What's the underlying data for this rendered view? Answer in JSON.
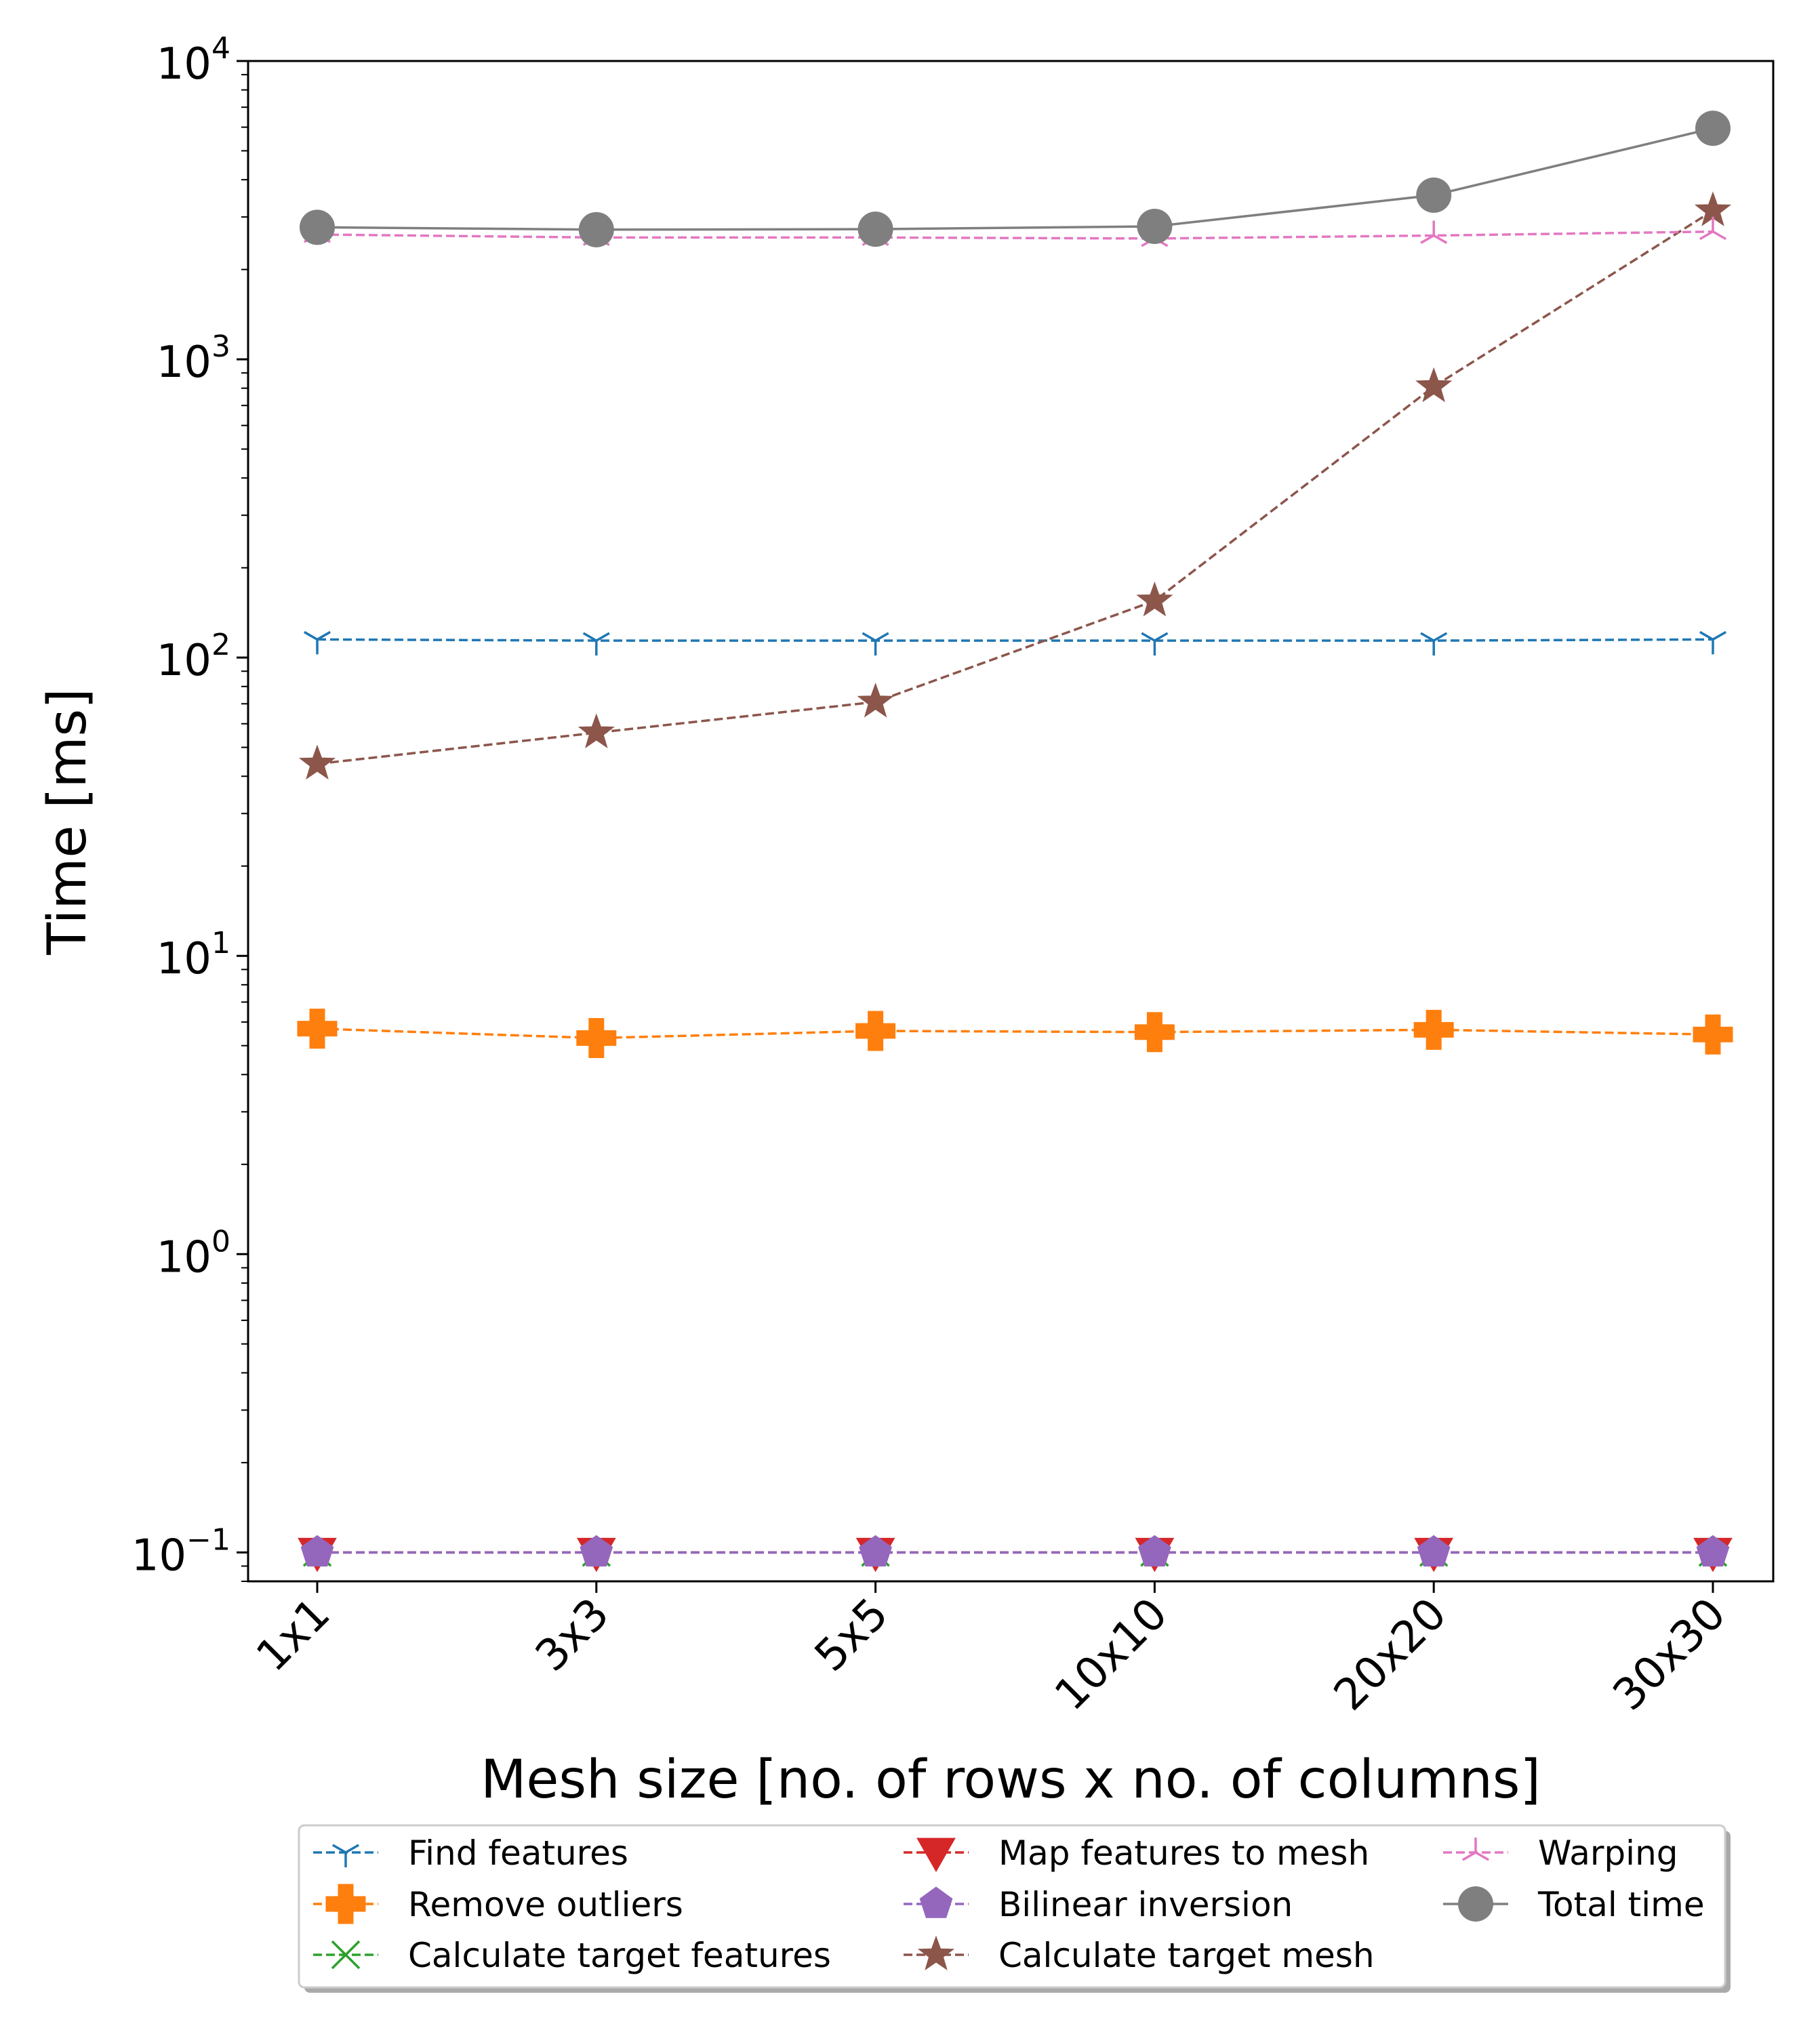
{
  "chart_data": {
    "type": "line",
    "yscale": "log",
    "ylim": [
      0.08,
      10000
    ],
    "xlabel": "Mesh size [no. of rows x no. of columns]",
    "ylabel": "Time [ms]",
    "categories": [
      "1x1",
      "3x3",
      "5x5",
      "10x10",
      "20x20",
      "30x30"
    ],
    "yticks": [
      {
        "value": 0.1,
        "base": "10",
        "exp": "−1"
      },
      {
        "value": 1,
        "base": "10",
        "exp": "0"
      },
      {
        "value": 10,
        "base": "10",
        "exp": "1"
      },
      {
        "value": 100,
        "base": "10",
        "exp": "2"
      },
      {
        "value": 1000,
        "base": "10",
        "exp": "3"
      },
      {
        "value": 10000,
        "base": "10",
        "exp": "4"
      }
    ],
    "legend_position": "bottom-center",
    "series": [
      {
        "name": "Find features",
        "color": "#1f77b4",
        "dash": true,
        "marker": "tri_down",
        "values": [
          115,
          114,
          114,
          114,
          114,
          115
        ]
      },
      {
        "name": "Remove outliers",
        "color": "#ff7f0e",
        "dash": true,
        "marker": "plus_filled",
        "values": [
          5.7,
          5.3,
          5.6,
          5.55,
          5.65,
          5.45
        ]
      },
      {
        "name": "Calculate target features",
        "color": "#2ca02c",
        "dash": true,
        "marker": "x",
        "values": [
          0.1,
          0.1,
          0.1,
          0.1,
          0.1,
          0.1
        ]
      },
      {
        "name": "Map features to mesh",
        "color": "#d62728",
        "dash": true,
        "marker": "triangle_down",
        "values": [
          0.1,
          0.1,
          0.1,
          0.1,
          0.1,
          0.1
        ]
      },
      {
        "name": "Bilinear inversion",
        "color": "#9467bd",
        "dash": true,
        "marker": "pentagon",
        "values": [
          0.1,
          0.1,
          0.1,
          0.1,
          0.1,
          0.1
        ]
      },
      {
        "name": "Calculate target mesh",
        "color": "#8c564b",
        "dash": true,
        "marker": "star",
        "values": [
          44,
          56,
          71,
          155,
          810,
          3150
        ]
      },
      {
        "name": "Warping",
        "color": "#e377c2",
        "dash": true,
        "marker": "tri_up",
        "values": [
          2620,
          2560,
          2560,
          2540,
          2600,
          2680
        ]
      },
      {
        "name": "Total time",
        "color": "#7f7f7f",
        "dash": false,
        "marker": "circle",
        "values": [
          2770,
          2720,
          2730,
          2790,
          3550,
          5950
        ]
      }
    ]
  }
}
